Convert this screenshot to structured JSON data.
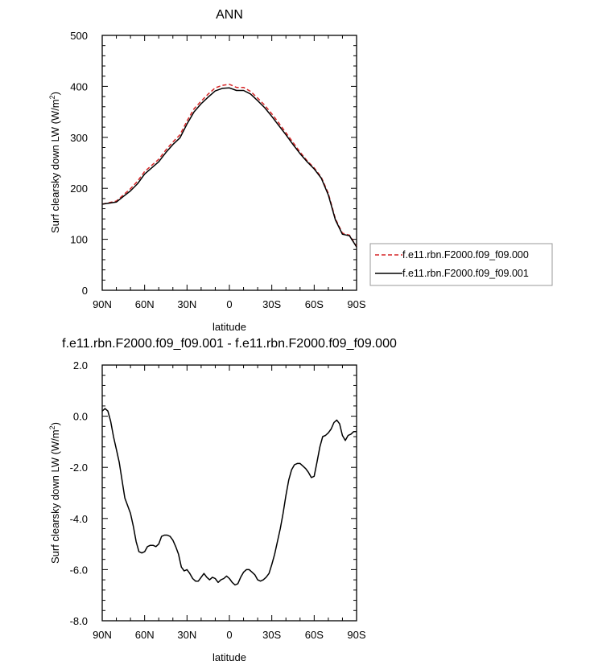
{
  "chart_data": [
    {
      "type": "line",
      "title": "ANN",
      "xlabel": "latitude",
      "ylabel": "Surf clearsky down LW (W/m",
      "ylabel_sup": "2",
      "ylabel_end": ")",
      "xlim": [
        90,
        -90
      ],
      "ylim": [
        0,
        500
      ],
      "x_ticks": [
        {
          "v": 90,
          "label": "90N"
        },
        {
          "v": 60,
          "label": "60N"
        },
        {
          "v": 30,
          "label": "30N"
        },
        {
          "v": 0,
          "label": "0"
        },
        {
          "v": -30,
          "label": "30S"
        },
        {
          "v": -60,
          "label": "60S"
        },
        {
          "v": -90,
          "label": "90S"
        }
      ],
      "y_ticks": [
        {
          "v": 0,
          "label": "0"
        },
        {
          "v": 100,
          "label": "100"
        },
        {
          "v": 200,
          "label": "200"
        },
        {
          "v": 300,
          "label": "300"
        },
        {
          "v": 400,
          "label": "400"
        },
        {
          "v": 500,
          "label": "500"
        }
      ],
      "legend_position": "right",
      "series": [
        {
          "name": "f.e11.rbn.F2000.f09_f09.000",
          "color": "#d62728",
          "dash": true,
          "x": [
            90,
            85,
            80,
            75,
            70,
            65,
            60,
            55,
            50,
            45,
            40,
            35,
            30,
            25,
            20,
            15,
            10,
            5,
            0,
            -5,
            -10,
            -15,
            -20,
            -25,
            -30,
            -35,
            -40,
            -45,
            -50,
            -55,
            -60,
            -65,
            -70,
            -75,
            -80,
            -85,
            -90
          ],
          "y": [
            169,
            172,
            175,
            187,
            199,
            214,
            233,
            245,
            257,
            275,
            291,
            305,
            332,
            356,
            371,
            385,
            397,
            402,
            404,
            398,
            398,
            390,
            377,
            363,
            346,
            328,
            309,
            290,
            271,
            254,
            240,
            222,
            190,
            140,
            112,
            108,
            86
          ]
        },
        {
          "name": "f.e11.rbn.F2000.f09_f09.001",
          "color": "#000000",
          "dash": false,
          "x": [
            90,
            85,
            80,
            75,
            70,
            65,
            60,
            55,
            50,
            45,
            40,
            35,
            30,
            25,
            20,
            15,
            10,
            5,
            0,
            -5,
            -10,
            -15,
            -20,
            -25,
            -30,
            -35,
            -40,
            -45,
            -50,
            -55,
            -60,
            -65,
            -70,
            -75,
            -80,
            -85,
            -90
          ],
          "y": [
            169,
            171,
            173,
            184,
            195,
            209,
            228,
            240,
            252,
            270,
            286,
            299,
            326,
            350,
            366,
            379,
            391,
            396,
            397,
            392,
            392,
            385,
            372,
            358,
            341,
            323,
            305,
            286,
            268,
            252,
            238,
            220,
            187,
            138,
            110,
            107,
            85
          ]
        }
      ]
    },
    {
      "type": "line",
      "title": "f.e11.rbn.F2000.f09_f09.001 - f.e11.rbn.F2000.f09_f09.000",
      "xlabel": "latitude",
      "ylabel": "Surf clearsky down LW (W/m",
      "ylabel_sup": "2",
      "ylabel_end": ")",
      "xlim": [
        90,
        -90
      ],
      "ylim": [
        -8,
        2
      ],
      "x_ticks": [
        {
          "v": 90,
          "label": "90N"
        },
        {
          "v": 60,
          "label": "60N"
        },
        {
          "v": 30,
          "label": "30N"
        },
        {
          "v": 0,
          "label": "0"
        },
        {
          "v": -30,
          "label": "30S"
        },
        {
          "v": -60,
          "label": "60S"
        },
        {
          "v": -90,
          "label": "90S"
        }
      ],
      "y_ticks": [
        {
          "v": -8,
          "label": "-8.0"
        },
        {
          "v": -6,
          "label": "-6.0"
        },
        {
          "v": -4,
          "label": "-4.0"
        },
        {
          "v": -2,
          "label": "-2.0"
        },
        {
          "v": 0,
          "label": "0.0"
        },
        {
          "v": 2,
          "label": "2.0"
        }
      ],
      "series": [
        {
          "color": "#000000",
          "dash": false,
          "x": [
            90,
            88,
            86,
            84,
            82,
            80,
            78,
            76,
            74,
            72,
            70,
            68,
            66,
            64,
            62,
            60,
            58,
            56,
            54,
            52,
            50,
            48,
            46,
            44,
            42,
            40,
            38,
            36,
            34,
            32,
            30,
            28,
            26,
            24,
            22,
            20,
            18,
            16,
            14,
            12,
            10,
            8,
            6,
            4,
            2,
            0,
            -2,
            -4,
            -6,
            -8,
            -10,
            -12,
            -14,
            -16,
            -18,
            -20,
            -22,
            -24,
            -26,
            -28,
            -30,
            -32,
            -34,
            -36,
            -38,
            -40,
            -42,
            -44,
            -46,
            -48,
            -50,
            -52,
            -54,
            -56,
            -58,
            -60,
            -62,
            -64,
            -66,
            -68,
            -70,
            -72,
            -74,
            -76,
            -78,
            -80,
            -82,
            -84,
            -86,
            -88,
            -90
          ],
          "y": [
            0.2,
            0.3,
            0.2,
            -0.2,
            -0.8,
            -1.3,
            -1.8,
            -2.5,
            -3.2,
            -3.5,
            -3.8,
            -4.3,
            -4.9,
            -5.3,
            -5.35,
            -5.3,
            -5.1,
            -5.05,
            -5.05,
            -5.1,
            -5.0,
            -4.7,
            -4.65,
            -4.65,
            -4.7,
            -4.85,
            -5.1,
            -5.4,
            -5.9,
            -6.05,
            -6.0,
            -6.15,
            -6.35,
            -6.45,
            -6.45,
            -6.3,
            -6.15,
            -6.3,
            -6.4,
            -6.3,
            -6.35,
            -6.5,
            -6.4,
            -6.35,
            -6.25,
            -6.35,
            -6.5,
            -6.6,
            -6.55,
            -6.3,
            -6.1,
            -6.0,
            -6.0,
            -6.1,
            -6.2,
            -6.4,
            -6.45,
            -6.4,
            -6.3,
            -6.15,
            -5.8,
            -5.4,
            -4.9,
            -4.4,
            -3.8,
            -3.1,
            -2.5,
            -2.1,
            -1.9,
            -1.85,
            -1.85,
            -1.95,
            -2.05,
            -2.2,
            -2.4,
            -2.35,
            -1.8,
            -1.2,
            -0.8,
            -0.75,
            -0.65,
            -0.5,
            -0.25,
            -0.15,
            -0.3,
            -0.75,
            -0.95,
            -0.75,
            -0.7,
            -0.6,
            -0.6
          ]
        }
      ]
    }
  ]
}
